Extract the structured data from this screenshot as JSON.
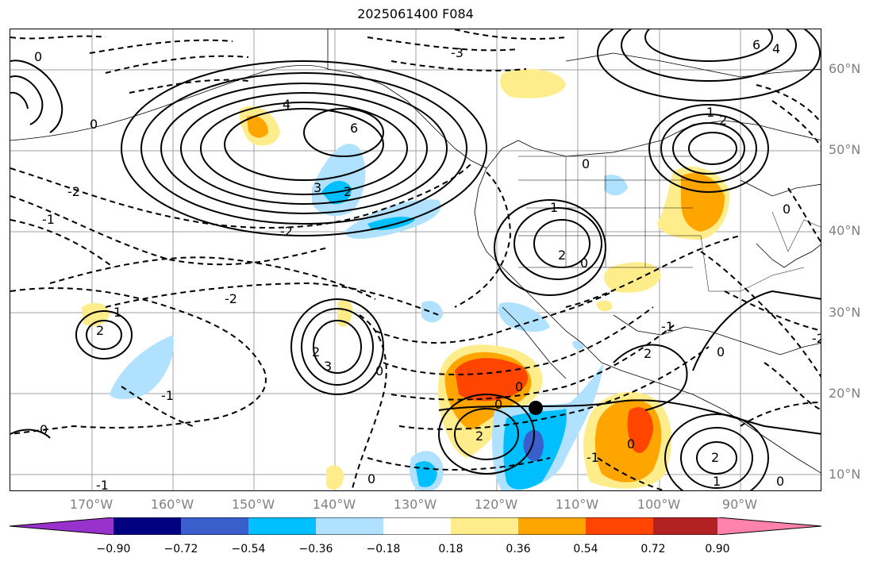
{
  "title": "2025061400 F084",
  "lat_labels": [
    "60°N",
    "50°N",
    "40°N",
    "30°N",
    "20°N",
    "10°N"
  ],
  "lon_labels": [
    "170°W",
    "160°W",
    "150°W",
    "140°W",
    "130°W",
    "120°W",
    "110°W",
    "100°W",
    "90°W"
  ],
  "colorbar": {
    "ticks": [
      "−0.90",
      "−0.72",
      "−0.54",
      "−0.36",
      "−0.18",
      "0.18",
      "0.36",
      "0.54",
      "0.72",
      "0.90"
    ],
    "colors": [
      "#9932cc",
      "#000080",
      "#3a5fcd",
      "#00bfff",
      "#b0e2ff",
      "#ffffff",
      "#ffec8b",
      "#ffa500",
      "#ff4500",
      "#b22222",
      "#ff83aa"
    ]
  },
  "contour_labels": [
    {
      "text": "4"
    },
    {
      "text": "6"
    },
    {
      "text": "2"
    },
    {
      "text": "3"
    },
    {
      "text": "-2"
    },
    {
      "text": "-1"
    },
    {
      "text": "0"
    },
    {
      "text": "-3"
    },
    {
      "text": "1"
    }
  ]
}
